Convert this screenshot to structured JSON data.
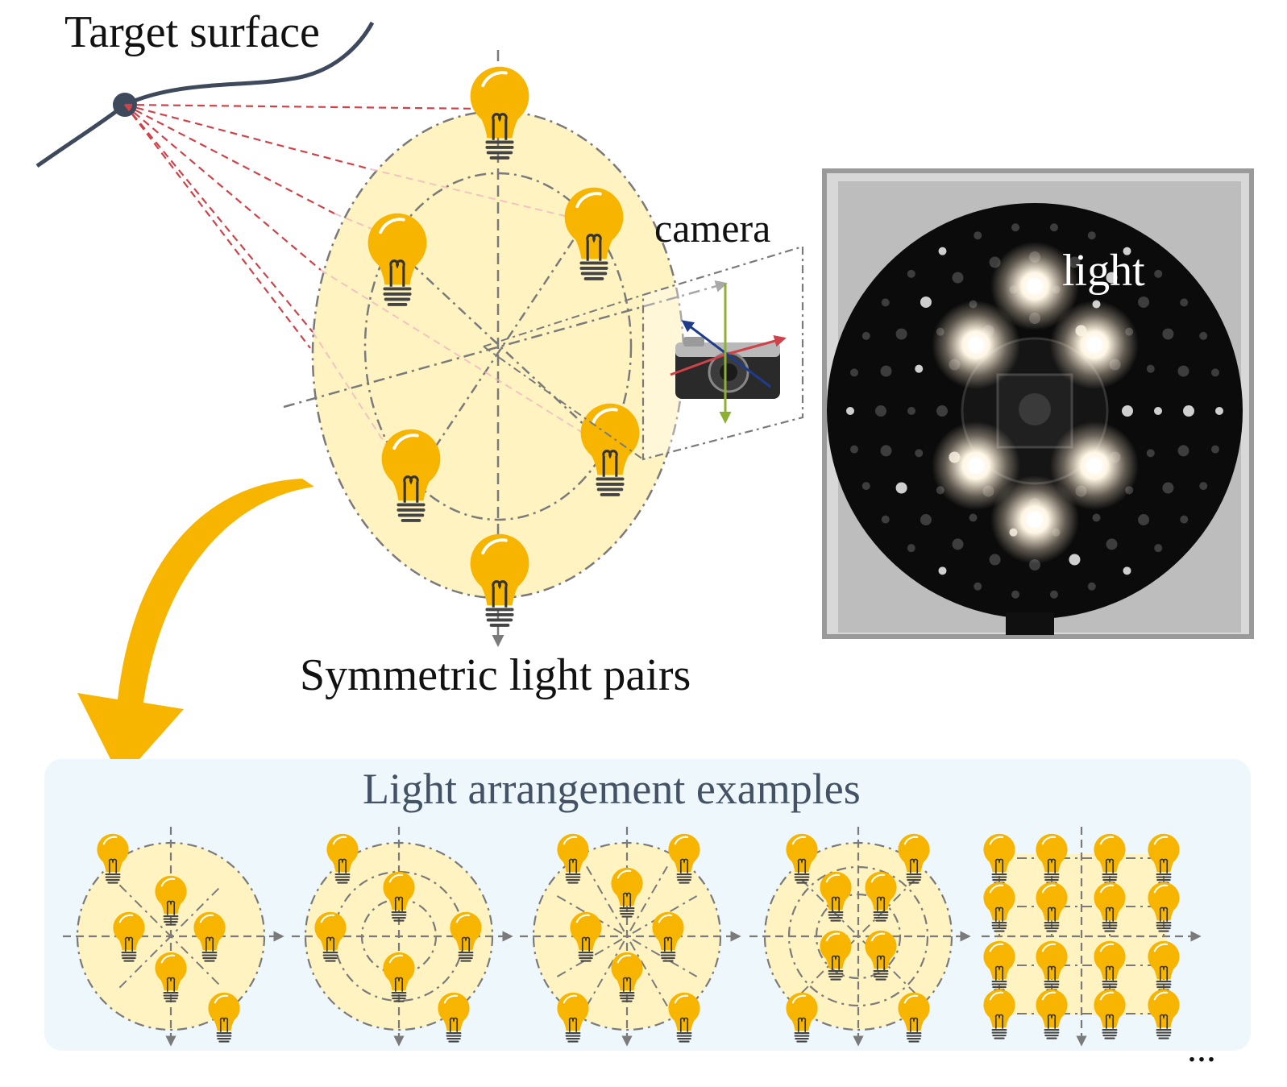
{
  "labels": {
    "target_surface": "Target surface",
    "camera": "camera",
    "light": "light",
    "symmetric_pairs": "Symmetric light pairs",
    "arrangement_title": "Light arrangement examples",
    "ellipsis": "..."
  },
  "colors": {
    "bulb": "#F7B500",
    "bulb_dark": "#E2A000",
    "bulb_base": "#555555",
    "disk_fill": "#FFF3C2",
    "guide": "#7a7a7a",
    "ray": "#D0424A",
    "surface": "#3E4A5C",
    "panel_bg": "#EEF7FB",
    "curved_arrow": "#F7B500",
    "axis_red": "#D0424A",
    "axis_blue": "#1F3B8C",
    "axis_green": "#8DB02E",
    "photo_bg": "#0b0b0b"
  },
  "icons": [
    "light-bulb-icon",
    "camera-icon",
    "curved-arrow-icon",
    "target-point-icon"
  ]
}
